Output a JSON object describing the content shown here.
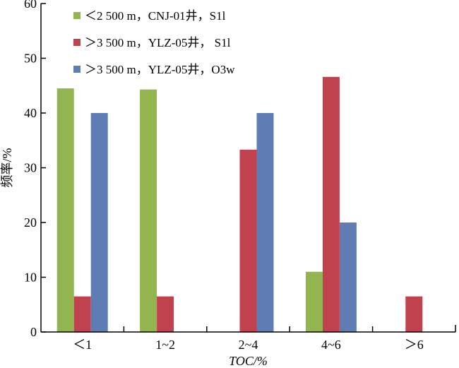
{
  "chart_data": {
    "type": "bar",
    "categories": [
      "＜1",
      "1~2",
      "2~4",
      "4~6",
      "＞6"
    ],
    "series": [
      {
        "name": "＜2 500 m，CNJ-01井，S1l",
        "color": "#92b54f",
        "values": [
          44.5,
          44.3,
          0,
          11.0,
          0
        ]
      },
      {
        "name": "＞3 500 m，YLZ-05井， S1l",
        "color": "#c0424f",
        "values": [
          6.5,
          6.5,
          33.3,
          46.6,
          6.5
        ]
      },
      {
        "name": "＞3 500 m，YLZ-05井，O3w",
        "color": "#5f7db4",
        "values": [
          40.0,
          0,
          40.0,
          20.0,
          0
        ]
      }
    ],
    "xlabel": "TOC/%",
    "ylabel": "频率/%",
    "ylim": [
      0,
      60
    ],
    "yticks": [
      0,
      10,
      20,
      30,
      40,
      50,
      60
    ],
    "grid": false,
    "legend_position": "top-left"
  }
}
